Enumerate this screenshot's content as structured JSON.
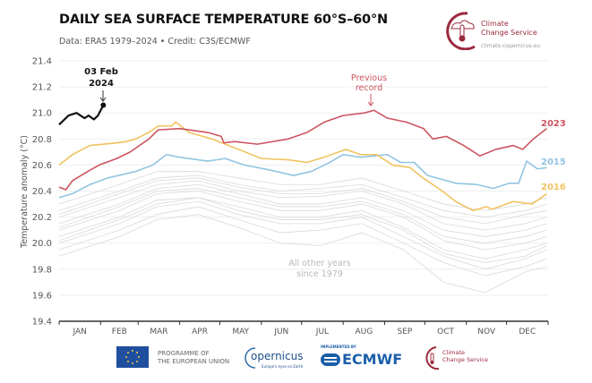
{
  "header": {
    "title": "DAILY SEA SURFACE TEMPERATURE 60°S–60°N",
    "subtitle": "Data: ERA5 1979–2024 • Credit: C3S/ECMWF"
  },
  "logos": {
    "c3s_top": {
      "line1": "Climate",
      "line2": "Change Service",
      "url_text": "climate.copernicus.eu"
    },
    "eu": {
      "line1": "PROGRAMME OF",
      "line2": "THE EUROPEAN UNION"
    },
    "copernicus": {
      "name": "opernicus",
      "tagline": "Europe's eyes on Earth"
    },
    "ecmwf": {
      "implemented_by": "IMPLEMENTED BY",
      "name": "ECMWF"
    },
    "c3s_bottom": {
      "line1": "Climate",
      "line2": "Change Service"
    }
  },
  "chart_data": {
    "type": "line",
    "title": "DAILY SEA SURFACE TEMPERATURE 60°S–60°N",
    "xlabel": "",
    "ylabel": "Temperature anomaly (°C)",
    "ylim": [
      19.4,
      21.4
    ],
    "yticks": [
      "19.4",
      "19.6",
      "19.8",
      "20.0",
      "20.2",
      "20.4",
      "20.6",
      "20.8",
      "21.0",
      "21.2",
      "21.4"
    ],
    "xticks": [
      "JAN",
      "FEB",
      "MAR",
      "APR",
      "MAY",
      "JUN",
      "JUL",
      "AUG",
      "SEP",
      "OCT",
      "NOV",
      "DEC"
    ],
    "grid": true,
    "colors": {
      "2024": "#111111",
      "2023": "#cc5561",
      "2015": "#92c4e2",
      "2016": "#f0c35f",
      "other": "#d9d9d9",
      "axis": "#333333"
    },
    "annotations": [
      {
        "text_line1": "03 Feb",
        "text_line2": "2024",
        "color": "#111111"
      },
      {
        "text_line1": "Previous",
        "text_line2": "record",
        "color": "#cc5561"
      },
      {
        "text_line1": "All other years",
        "text_line2": "since 1979",
        "color": "#b8b8b8"
      }
    ],
    "series": [
      {
        "name": "2023",
        "key": "2023",
        "points": [
          [
            "01-01",
            20.43
          ],
          [
            "01-06",
            20.41
          ],
          [
            "01-11",
            20.48
          ],
          [
            "01-24",
            20.56
          ],
          [
            "01-31",
            20.6
          ],
          [
            "02-13",
            20.65
          ],
          [
            "02-23",
            20.7
          ],
          [
            "03-09",
            20.8
          ],
          [
            "03-16",
            20.87
          ],
          [
            "04-01",
            20.88
          ],
          [
            "04-22",
            20.85
          ],
          [
            "05-02",
            20.82
          ],
          [
            "05-04",
            20.77
          ],
          [
            "05-12",
            20.78
          ],
          [
            "05-29",
            20.76
          ],
          [
            "06-21",
            20.8
          ],
          [
            "07-05",
            20.85
          ],
          [
            "07-18",
            20.93
          ],
          [
            "08-01",
            20.98
          ],
          [
            "08-17",
            21.0
          ],
          [
            "08-24",
            21.02
          ],
          [
            "09-03",
            20.96
          ],
          [
            "09-17",
            20.93
          ],
          [
            "09-30",
            20.88
          ],
          [
            "10-07",
            20.8
          ],
          [
            "10-17",
            20.82
          ],
          [
            "10-30",
            20.75
          ],
          [
            "11-11",
            20.67
          ],
          [
            "11-23",
            20.72
          ],
          [
            "12-06",
            20.75
          ],
          [
            "12-13",
            20.72
          ],
          [
            "12-21",
            20.8
          ],
          [
            "12-31",
            20.88
          ]
        ]
      },
      {
        "name": "2015",
        "key": "2015",
        "points": [
          [
            "01-01",
            20.35
          ],
          [
            "01-11",
            20.38
          ],
          [
            "01-24",
            20.45
          ],
          [
            "02-06",
            20.5
          ],
          [
            "02-27",
            20.55
          ],
          [
            "03-12",
            20.6
          ],
          [
            "03-22",
            20.68
          ],
          [
            "04-01",
            20.66
          ],
          [
            "04-22",
            20.63
          ],
          [
            "05-05",
            20.65
          ],
          [
            "05-19",
            20.6
          ],
          [
            "06-08",
            20.56
          ],
          [
            "06-25",
            20.52
          ],
          [
            "07-08",
            20.55
          ],
          [
            "07-22",
            20.62
          ],
          [
            "08-01",
            20.68
          ],
          [
            "08-14",
            20.66
          ],
          [
            "09-03",
            20.68
          ],
          [
            "09-13",
            20.62
          ],
          [
            "09-23",
            20.62
          ],
          [
            "10-03",
            20.52
          ],
          [
            "10-24",
            20.46
          ],
          [
            "11-09",
            20.45
          ],
          [
            "11-21",
            20.42
          ],
          [
            "12-03",
            20.46
          ],
          [
            "12-10",
            20.46
          ],
          [
            "12-16",
            20.63
          ],
          [
            "12-24",
            20.57
          ],
          [
            "12-31",
            20.58
          ]
        ]
      },
      {
        "name": "2016",
        "key": "2016",
        "points": [
          [
            "01-01",
            20.6
          ],
          [
            "01-11",
            20.68
          ],
          [
            "01-24",
            20.75
          ],
          [
            "02-13",
            20.77
          ],
          [
            "02-20",
            20.78
          ],
          [
            "02-27",
            20.8
          ],
          [
            "03-09",
            20.85
          ],
          [
            "03-16",
            20.9
          ],
          [
            "03-26",
            20.9
          ],
          [
            "03-29",
            20.93
          ],
          [
            "04-08",
            20.85
          ],
          [
            "04-25",
            20.8
          ],
          [
            "05-15",
            20.72
          ],
          [
            "06-01",
            20.65
          ],
          [
            "06-21",
            20.64
          ],
          [
            "07-05",
            20.62
          ],
          [
            "07-18",
            20.66
          ],
          [
            "08-03",
            20.72
          ],
          [
            "08-14",
            20.68
          ],
          [
            "08-26",
            20.68
          ],
          [
            "09-07",
            20.6
          ],
          [
            "09-20",
            20.58
          ],
          [
            "09-27",
            20.52
          ],
          [
            "10-14",
            20.4
          ],
          [
            "10-24",
            20.32
          ],
          [
            "11-06",
            20.25
          ],
          [
            "11-16",
            20.28
          ],
          [
            "11-20",
            20.26
          ],
          [
            "12-06",
            20.32
          ],
          [
            "12-20",
            20.3
          ],
          [
            "12-31",
            20.38
          ]
        ]
      },
      {
        "name": "2024",
        "key": "2024",
        "points": [
          [
            "01-01",
            20.91
          ],
          [
            "01-08",
            20.98
          ],
          [
            "01-14",
            21.0
          ],
          [
            "01-20",
            20.96
          ],
          [
            "01-23",
            20.98
          ],
          [
            "01-27",
            20.95
          ],
          [
            "01-30",
            20.98
          ],
          [
            "02-03",
            21.06
          ]
        ]
      }
    ],
    "other_years": [
      [
        20.3,
        20.45,
        20.55,
        20.55,
        20.5,
        20.45,
        20.45,
        20.5,
        20.4,
        20.3,
        20.25,
        20.3,
        20.35
      ],
      [
        20.25,
        20.4,
        20.5,
        20.52,
        20.45,
        20.4,
        20.42,
        20.45,
        20.35,
        20.25,
        20.2,
        20.25,
        20.3
      ],
      [
        20.2,
        20.35,
        20.45,
        20.48,
        20.4,
        20.35,
        20.36,
        20.4,
        20.3,
        20.15,
        20.1,
        20.15,
        20.2
      ],
      [
        20.15,
        20.3,
        20.42,
        20.45,
        20.38,
        20.3,
        20.3,
        20.35,
        20.25,
        20.1,
        20.05,
        20.1,
        20.15
      ],
      [
        20.1,
        20.25,
        20.38,
        20.4,
        20.32,
        20.25,
        20.25,
        20.3,
        20.2,
        20.02,
        19.95,
        20.0,
        20.05
      ],
      [
        20.05,
        20.2,
        20.33,
        20.35,
        20.28,
        20.2,
        20.2,
        20.25,
        20.12,
        19.95,
        19.88,
        19.95,
        20.0
      ],
      [
        20.0,
        20.15,
        20.28,
        20.32,
        20.22,
        20.15,
        20.15,
        20.2,
        20.05,
        19.9,
        19.8,
        19.88,
        19.95
      ],
      [
        19.95,
        20.1,
        20.22,
        20.28,
        20.18,
        20.08,
        20.1,
        20.15,
        20.0,
        19.85,
        19.75,
        19.82,
        19.88
      ],
      [
        19.9,
        20.05,
        20.18,
        20.22,
        20.12,
        20.0,
        19.98,
        20.08,
        19.95,
        19.7,
        19.62,
        19.78,
        19.82
      ],
      [
        20.22,
        20.38,
        20.48,
        20.5,
        20.43,
        20.38,
        20.38,
        20.42,
        20.32,
        20.2,
        20.15,
        20.22,
        20.25
      ],
      [
        20.12,
        20.28,
        20.4,
        20.42,
        20.35,
        20.28,
        20.28,
        20.32,
        20.22,
        20.05,
        20.0,
        20.05,
        20.1
      ],
      [
        20.02,
        20.18,
        20.3,
        20.35,
        20.25,
        20.18,
        20.18,
        20.22,
        20.1,
        19.92,
        19.85,
        19.9,
        19.98
      ]
    ]
  }
}
